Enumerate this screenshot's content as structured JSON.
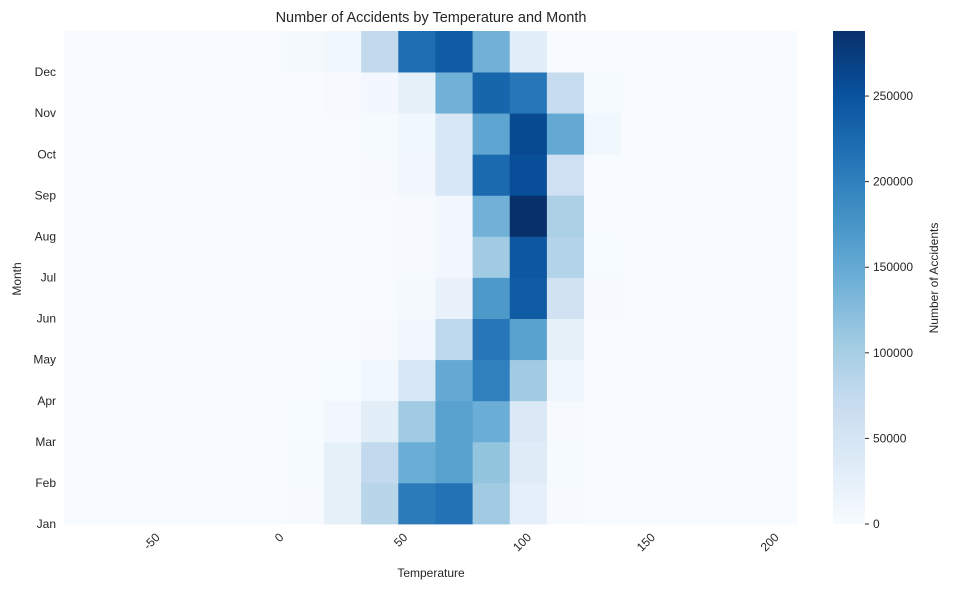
{
  "chart_data": {
    "type": "heatmap",
    "title": "Number of Accidents by Temperature and Month",
    "xlabel": "Temperature",
    "ylabel": "Month",
    "x_ticks": [
      "-50",
      "0",
      "50",
      "100",
      "150",
      "200"
    ],
    "x_tick_values": [
      -50,
      0,
      50,
      100,
      150,
      200
    ],
    "xlim": [
      -89,
      207
    ],
    "x_bin_edges": [
      -89,
      -74,
      -59,
      -44,
      -29,
      -14,
      1,
      16,
      31,
      46,
      61,
      76,
      91,
      106,
      121,
      136,
      151,
      166,
      181,
      196,
      207
    ],
    "months": [
      "Jan",
      "Feb",
      "Mar",
      "Apr",
      "May",
      "Jun",
      "Jul",
      "Aug",
      "Sep",
      "Oct",
      "Nov",
      "Dec"
    ],
    "values": [
      [
        0,
        0,
        0,
        0,
        0,
        0,
        1200,
        25000,
        85000,
        205000,
        215000,
        105000,
        28000,
        2000,
        0,
        0,
        0,
        0,
        0,
        0
      ],
      [
        0,
        0,
        0,
        0,
        0,
        0,
        2500,
        25000,
        75000,
        145000,
        160000,
        115000,
        35000,
        2500,
        0,
        0,
        0,
        0,
        0,
        0
      ],
      [
        0,
        0,
        0,
        0,
        0,
        0,
        1000,
        8000,
        30000,
        105000,
        160000,
        145000,
        40000,
        2000,
        0,
        0,
        0,
        0,
        0,
        0
      ],
      [
        0,
        0,
        0,
        0,
        0,
        0,
        0,
        1000,
        10000,
        45000,
        150000,
        200000,
        105000,
        12000,
        0,
        0,
        0,
        0,
        0,
        0
      ],
      [
        0,
        0,
        0,
        0,
        0,
        0,
        0,
        0,
        2000,
        8000,
        80000,
        210000,
        160000,
        25000,
        500,
        0,
        0,
        0,
        0,
        0
      ],
      [
        0,
        0,
        0,
        0,
        0,
        0,
        0,
        0,
        0,
        4000,
        20000,
        170000,
        240000,
        55000,
        1500,
        0,
        0,
        0,
        0,
        0
      ],
      [
        0,
        0,
        0,
        0,
        0,
        0,
        0,
        0,
        0,
        2000,
        8000,
        105000,
        245000,
        90000,
        1000,
        0,
        0,
        0,
        0,
        0
      ],
      [
        0,
        0,
        0,
        0,
        0,
        0,
        0,
        0,
        0,
        2000,
        7000,
        140000,
        288000,
        95000,
        500,
        0,
        0,
        0,
        0,
        0
      ],
      [
        0,
        0,
        0,
        0,
        0,
        0,
        0,
        0,
        2000,
        8000,
        45000,
        225000,
        255000,
        60000,
        500,
        0,
        0,
        0,
        0,
        0
      ],
      [
        0,
        0,
        0,
        0,
        0,
        0,
        0,
        0,
        3000,
        10000,
        45000,
        155000,
        260000,
        150000,
        10000,
        0,
        0,
        0,
        0,
        0
      ],
      [
        0,
        0,
        0,
        0,
        0,
        0,
        0,
        1500,
        6000,
        25000,
        140000,
        230000,
        210000,
        70000,
        3000,
        0,
        0,
        0,
        0,
        0
      ],
      [
        0,
        0,
        0,
        0,
        0,
        0,
        5000,
        10000,
        75000,
        220000,
        240000,
        140000,
        30000,
        500,
        0,
        0,
        0,
        0,
        0,
        0
      ]
    ],
    "colorbar": {
      "label": "Number of Accidents",
      "ticks": [
        "0",
        "50000",
        "100000",
        "150000",
        "200000",
        "250000"
      ],
      "tick_values": [
        0,
        50000,
        100000,
        150000,
        200000,
        250000
      ],
      "vmin": 0,
      "vmax": 288000
    },
    "colors": {
      "colormap": [
        "#f7fbff",
        "#deebf7",
        "#c6dbef",
        "#9ecae1",
        "#6baed6",
        "#4292c6",
        "#2171b5",
        "#08519c",
        "#08306b"
      ],
      "text": "#262626"
    }
  }
}
